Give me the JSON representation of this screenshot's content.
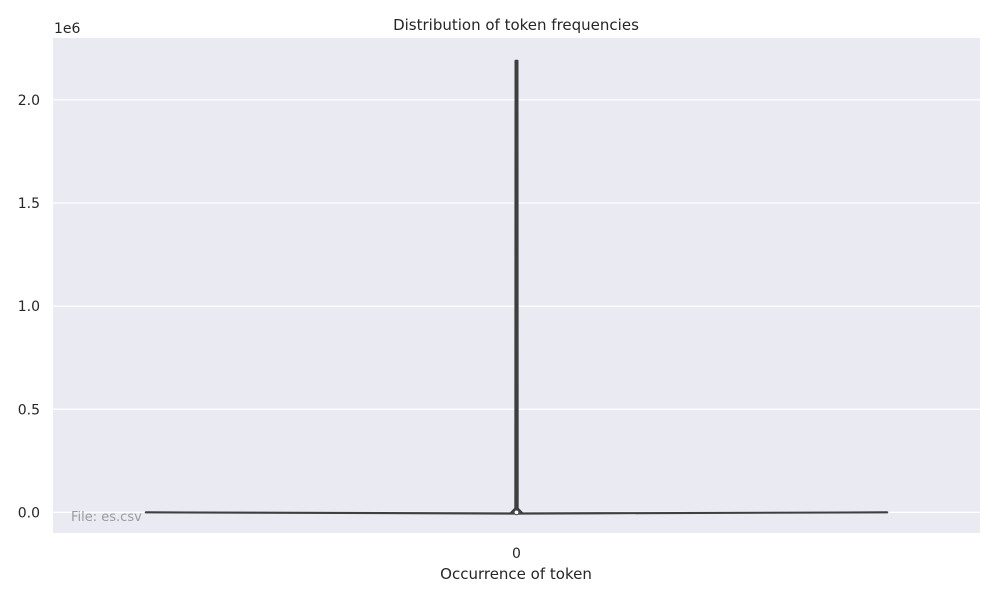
{
  "chart_data": {
    "type": "violin",
    "title": "Distribution of token frequencies",
    "xlabel": "Occurrence of token",
    "ylabel": "",
    "categories": [
      "0"
    ],
    "y_scale_offset": "1e6",
    "ylim": [
      -100000,
      2300000
    ],
    "y_ticks": [
      0,
      500000,
      1000000,
      1500000,
      2000000
    ],
    "y_tick_labels": [
      "0.0",
      "0.5",
      "1.0",
      "1.5",
      "2.0"
    ],
    "grid": true,
    "series": [
      {
        "category": "0",
        "min": 1,
        "max": 2190000,
        "q1": 1,
        "median": 3,
        "q3": 20
      }
    ],
    "annotation": "File: es.csv",
    "colors": {
      "background": "#eaeaf2",
      "grid": "#ffffff",
      "violin_fill": "#4c72b0",
      "violin_edge": "#3f3f3f",
      "median_marker": "#ffffff"
    }
  }
}
